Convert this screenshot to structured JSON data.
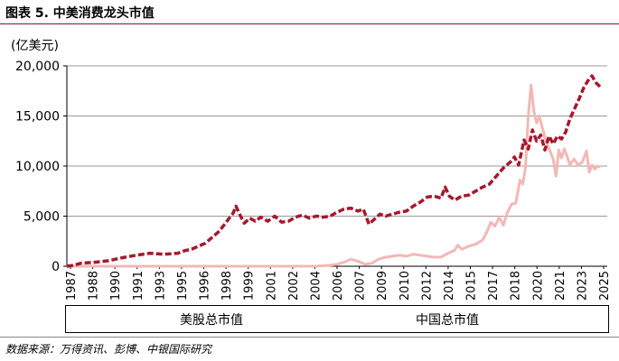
{
  "header": {
    "title": "图表 5. 中美消费龙头市值"
  },
  "footer": {
    "source": "数据来源：万得资讯、彭博、中银国际研究"
  },
  "colors": {
    "us": "#a6192e",
    "china": "#f2b8b5",
    "title_rule": "#8a1526"
  },
  "chart_data": {
    "type": "line",
    "unit_label": "(亿美元)",
    "ylim": [
      0,
      20000
    ],
    "yticks": [
      0,
      5000,
      10000,
      15000,
      20000
    ],
    "ytick_labels": [
      "0",
      "5,000",
      "10,000",
      "15,000",
      "20,000"
    ],
    "xlim": [
      1987,
      2026
    ],
    "xtick_labels": [
      "1987",
      "1988",
      "1990",
      "1991",
      "1993",
      "1995",
      "1996",
      "1998",
      "1999",
      "2001",
      "2002",
      "2004",
      "2006",
      "2007",
      "2009",
      "2010",
      "2012",
      "2014",
      "2015",
      "2017",
      "2018",
      "2020",
      "2021",
      "2023",
      "2025"
    ],
    "grid": true,
    "legend_position": "bottom",
    "series": [
      {
        "name": "美股总市值",
        "style": "dashed",
        "points": [
          [
            1987,
            0
          ],
          [
            1987.5,
            100
          ],
          [
            1988,
            300
          ],
          [
            1989,
            400
          ],
          [
            1990,
            550
          ],
          [
            1990.5,
            700
          ],
          [
            1991,
            850
          ],
          [
            1992,
            1100
          ],
          [
            1993,
            1300
          ],
          [
            1994,
            1200
          ],
          [
            1995,
            1300
          ],
          [
            1995.5,
            1550
          ],
          [
            1996,
            1700
          ],
          [
            1997,
            2300
          ],
          [
            1997.5,
            2900
          ],
          [
            1998,
            3500
          ],
          [
            1998.5,
            4400
          ],
          [
            1999,
            5300
          ],
          [
            1999.2,
            6000
          ],
          [
            1999.5,
            5100
          ],
          [
            1999.8,
            4300
          ],
          [
            2000.2,
            4800
          ],
          [
            2000.6,
            4500
          ],
          [
            2001,
            4900
          ],
          [
            2001.5,
            4500
          ],
          [
            2002,
            5000
          ],
          [
            2002.5,
            4400
          ],
          [
            2003,
            4500
          ],
          [
            2003.5,
            4900
          ],
          [
            2004,
            5100
          ],
          [
            2004.5,
            4800
          ],
          [
            2005,
            5000
          ],
          [
            2005.5,
            4900
          ],
          [
            2006,
            5000
          ],
          [
            2006.5,
            5400
          ],
          [
            2007,
            5700
          ],
          [
            2007.5,
            5800
          ],
          [
            2008,
            5500
          ],
          [
            2008.4,
            5700
          ],
          [
            2008.8,
            4200
          ],
          [
            2009.2,
            4700
          ],
          [
            2009.6,
            5200
          ],
          [
            2010,
            5000
          ],
          [
            2010.5,
            5200
          ],
          [
            2011,
            5400
          ],
          [
            2011.5,
            5500
          ],
          [
            2012,
            6000
          ],
          [
            2012.5,
            6400
          ],
          [
            2013,
            6900
          ],
          [
            2013.5,
            7000
          ],
          [
            2014,
            6800
          ],
          [
            2014.3,
            7900
          ],
          [
            2014.6,
            7000
          ],
          [
            2015,
            6600
          ],
          [
            2015.5,
            7000
          ],
          [
            2016,
            7100
          ],
          [
            2016.5,
            7500
          ],
          [
            2017,
            7900
          ],
          [
            2017.5,
            8200
          ],
          [
            2018,
            9000
          ],
          [
            2018.5,
            9800
          ],
          [
            2019,
            10400
          ],
          [
            2019.3,
            10900
          ],
          [
            2019.6,
            10100
          ],
          [
            2020,
            12600
          ],
          [
            2020.3,
            11700
          ],
          [
            2020.6,
            13600
          ],
          [
            2020.9,
            12500
          ],
          [
            2021.2,
            13100
          ],
          [
            2021.5,
            11600
          ],
          [
            2021.8,
            13000
          ],
          [
            2022.1,
            12200
          ],
          [
            2022.4,
            13000
          ],
          [
            2022.7,
            12700
          ],
          [
            2023,
            13400
          ],
          [
            2023.3,
            14700
          ],
          [
            2023.6,
            15600
          ],
          [
            2024,
            16800
          ],
          [
            2024.3,
            17800
          ],
          [
            2024.6,
            18500
          ],
          [
            2024.9,
            19000
          ],
          [
            2025.2,
            18300
          ],
          [
            2025.5,
            17900
          ]
        ]
      },
      {
        "name": "中国总市值",
        "style": "solid",
        "points": [
          [
            1987,
            0
          ],
          [
            2000,
            0
          ],
          [
            2005,
            0
          ],
          [
            2006,
            100
          ],
          [
            2006.5,
            200
          ],
          [
            2007,
            400
          ],
          [
            2007.5,
            700
          ],
          [
            2008,
            500
          ],
          [
            2008.5,
            200
          ],
          [
            2009,
            300
          ],
          [
            2009.5,
            700
          ],
          [
            2010,
            900
          ],
          [
            2010.5,
            1000
          ],
          [
            2011,
            1100
          ],
          [
            2011.5,
            1000
          ],
          [
            2012,
            1200
          ],
          [
            2012.5,
            1100
          ],
          [
            2013,
            1000
          ],
          [
            2013.5,
            900
          ],
          [
            2014,
            900
          ],
          [
            2014.5,
            1300
          ],
          [
            2015,
            1600
          ],
          [
            2015.2,
            2100
          ],
          [
            2015.5,
            1700
          ],
          [
            2016,
            2000
          ],
          [
            2016.5,
            2200
          ],
          [
            2017,
            2600
          ],
          [
            2017.3,
            3400
          ],
          [
            2017.6,
            4400
          ],
          [
            2017.9,
            4000
          ],
          [
            2018.2,
            4900
          ],
          [
            2018.5,
            4100
          ],
          [
            2018.8,
            5400
          ],
          [
            2019.1,
            6200
          ],
          [
            2019.4,
            6300
          ],
          [
            2019.7,
            8600
          ],
          [
            2019.9,
            8200
          ],
          [
            2020.1,
            9800
          ],
          [
            2020.3,
            15000
          ],
          [
            2020.5,
            18100
          ],
          [
            2020.7,
            15500
          ],
          [
            2020.9,
            14300
          ],
          [
            2021.1,
            15000
          ],
          [
            2021.3,
            13900
          ],
          [
            2021.6,
            12400
          ],
          [
            2021.9,
            11400
          ],
          [
            2022.1,
            10700
          ],
          [
            2022.3,
            9000
          ],
          [
            2022.5,
            11600
          ],
          [
            2022.7,
            10800
          ],
          [
            2022.9,
            11700
          ],
          [
            2023.1,
            11000
          ],
          [
            2023.3,
            10100
          ],
          [
            2023.6,
            10700
          ],
          [
            2023.9,
            10100
          ],
          [
            2024.2,
            10400
          ],
          [
            2024.5,
            11500
          ],
          [
            2024.7,
            9400
          ],
          [
            2024.9,
            10100
          ],
          [
            2025.1,
            9700
          ],
          [
            2025.3,
            10000
          ],
          [
            2025.5,
            9900
          ]
        ]
      }
    ]
  }
}
